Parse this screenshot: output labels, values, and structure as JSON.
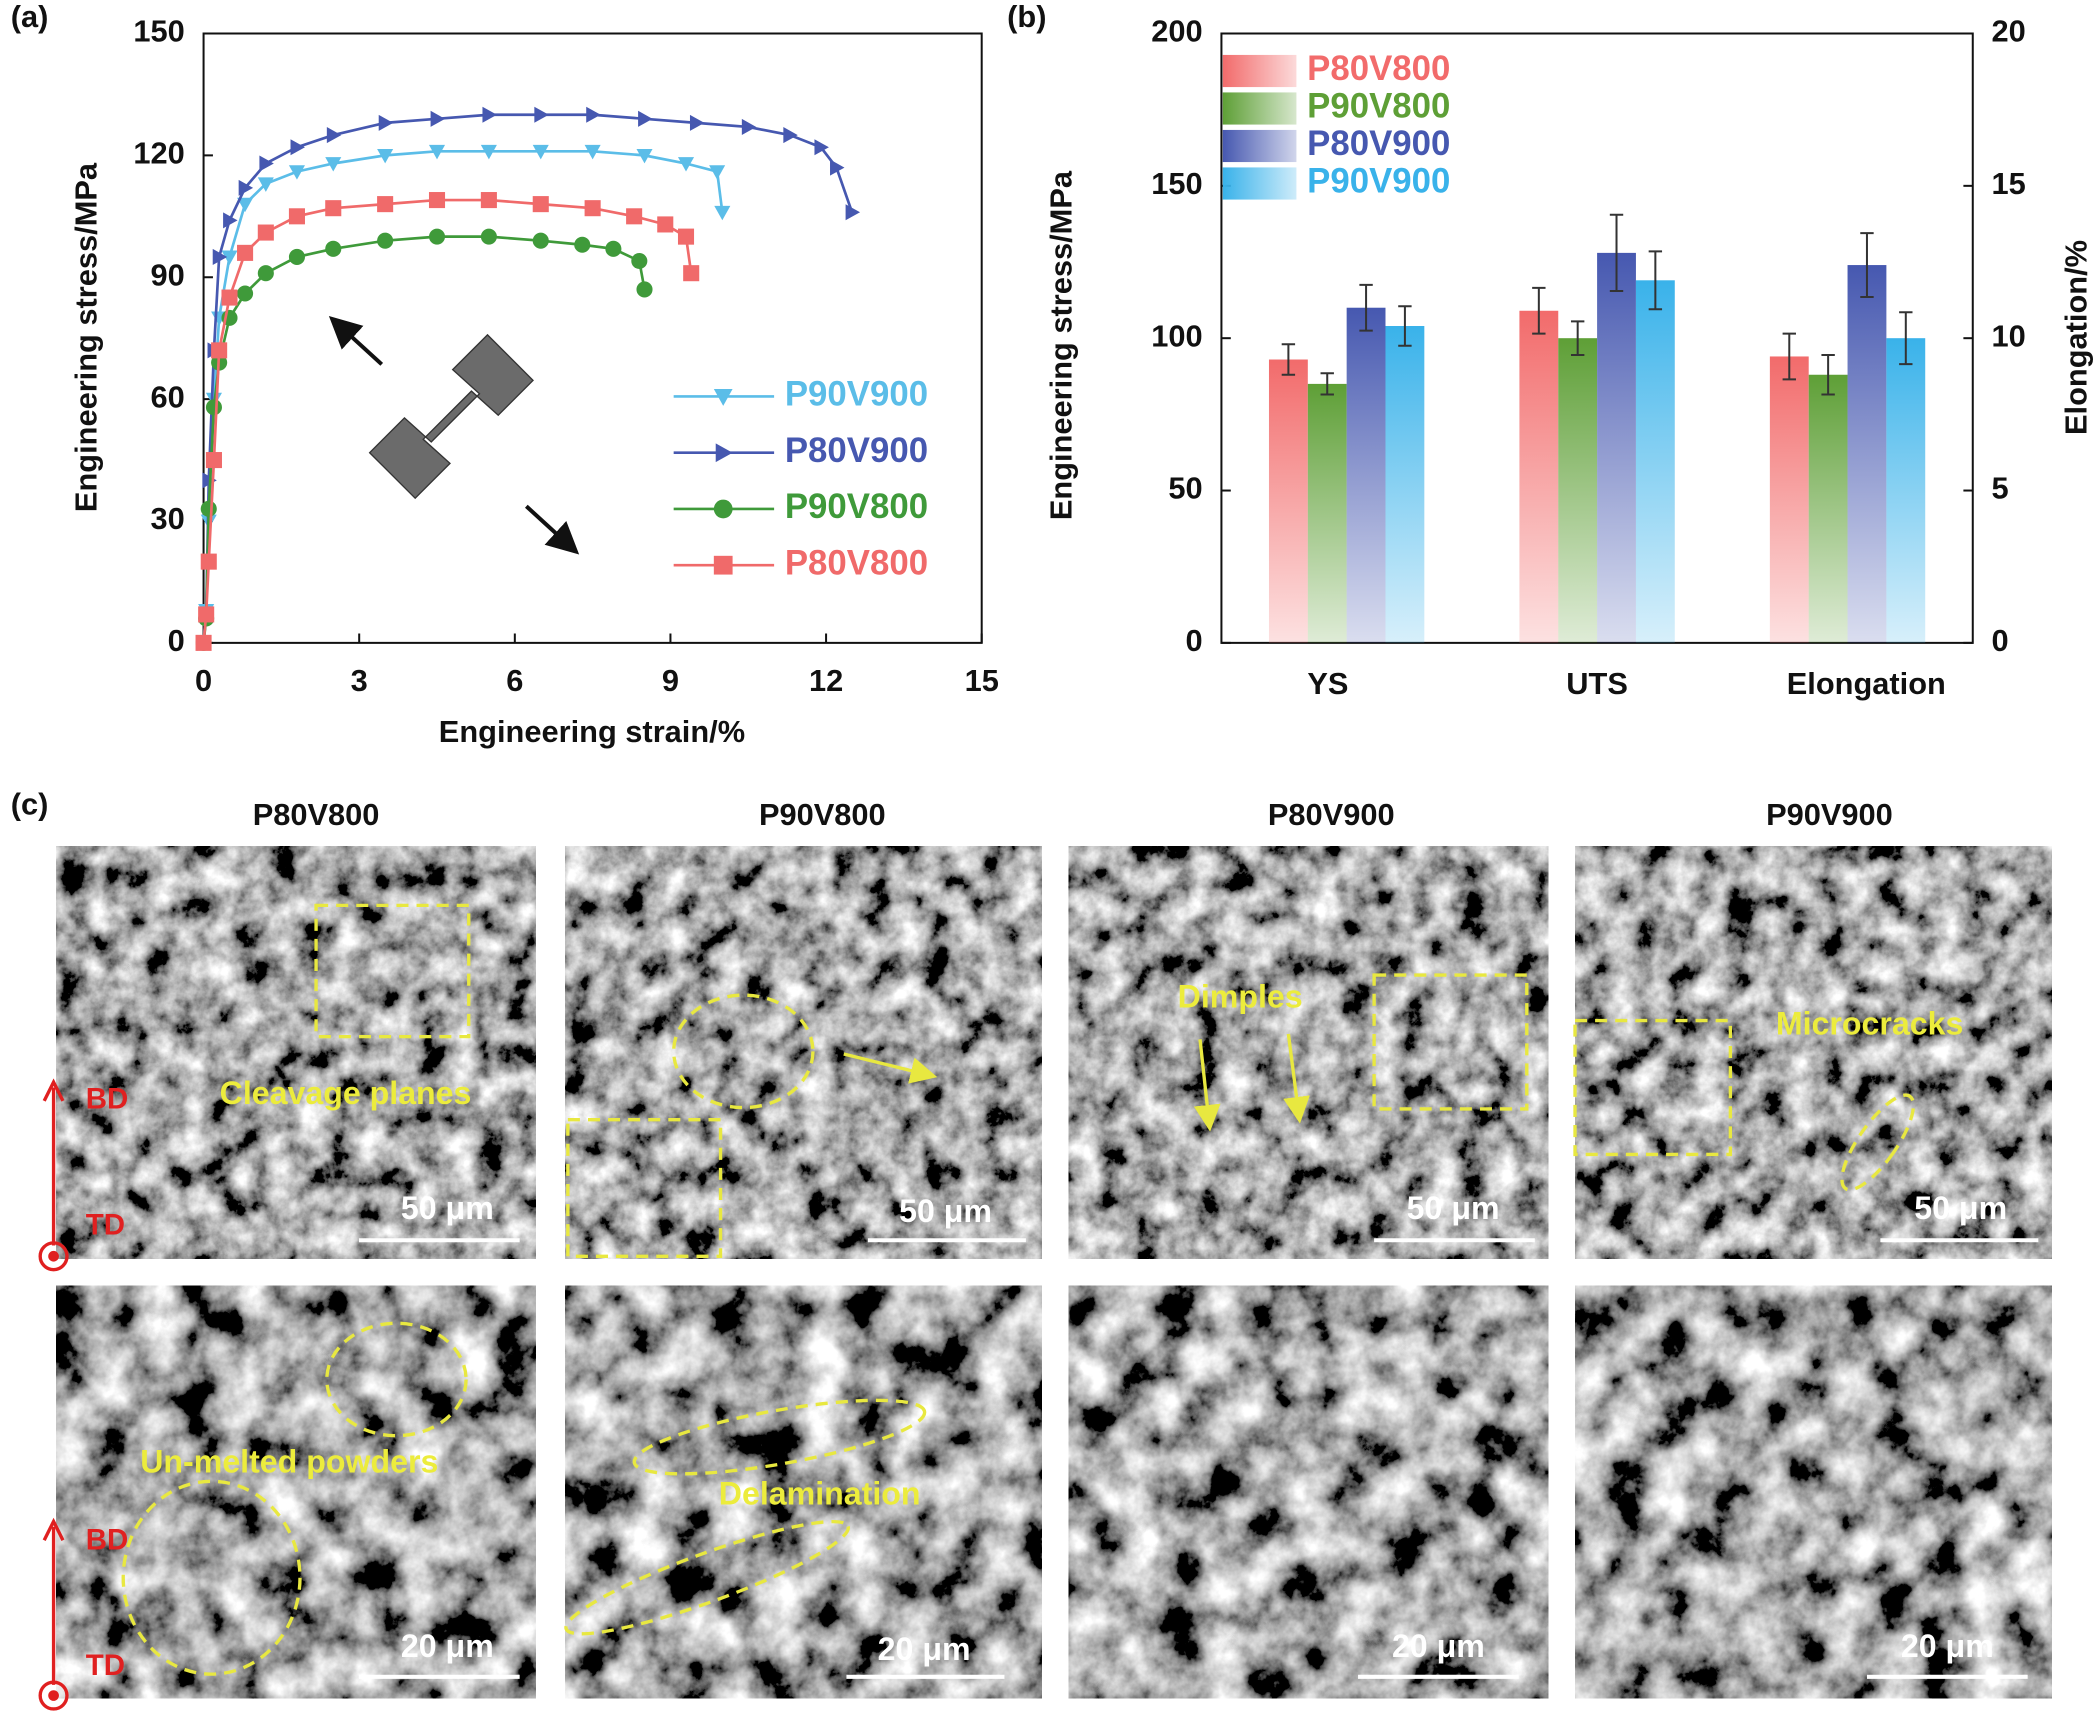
{
  "chart_data": [
    {
      "type": "line",
      "panel_label": "(a)",
      "x_label": "Engineering strain/%",
      "y_label": "Engineering stress/MPa",
      "xlim": [
        0,
        15
      ],
      "xticks": [
        0,
        3,
        6,
        9,
        12,
        15
      ],
      "ylim": [
        0,
        150
      ],
      "yticks": [
        0,
        30,
        60,
        90,
        120,
        150
      ],
      "legend": "center right",
      "series": [
        {
          "name": "P90V900",
          "color": "#5bbde8",
          "marker": "triangle-down",
          "x": [
            0,
            0.05,
            0.1,
            0.2,
            0.3,
            0.5,
            0.8,
            1.2,
            1.8,
            2.5,
            3.5,
            4.5,
            5.5,
            6.5,
            7.5,
            8.5,
            9.3,
            9.9,
            10.0
          ],
          "values": [
            0,
            8,
            30,
            60,
            80,
            95,
            108,
            113,
            116,
            118,
            120,
            121,
            121,
            121,
            121,
            120,
            118,
            116,
            106
          ]
        },
        {
          "name": "P80V900",
          "color": "#4658b0",
          "marker": "triangle-right",
          "x": [
            0,
            0.05,
            0.1,
            0.2,
            0.3,
            0.5,
            0.8,
            1.2,
            1.8,
            2.5,
            3.5,
            4.5,
            5.5,
            6.5,
            7.5,
            8.5,
            9.5,
            10.5,
            11.3,
            11.9,
            12.2,
            12.5
          ],
          "values": [
            0,
            7,
            40,
            72,
            95,
            104,
            112,
            118,
            122,
            125,
            128,
            129,
            130,
            130,
            130,
            129,
            128,
            127,
            125,
            122,
            117,
            106
          ]
        },
        {
          "name": "P90V800",
          "color": "#3f9a3a",
          "marker": "circle",
          "x": [
            0,
            0.05,
            0.1,
            0.2,
            0.3,
            0.5,
            0.8,
            1.2,
            1.8,
            2.5,
            3.5,
            4.5,
            5.5,
            6.5,
            7.3,
            7.9,
            8.4,
            8.5
          ],
          "values": [
            0,
            6,
            33,
            58,
            69,
            80,
            86,
            91,
            95,
            97,
            99,
            100,
            100,
            99,
            98,
            97,
            94,
            87
          ]
        },
        {
          "name": "P80V800",
          "color": "#f06a6a",
          "marker": "square",
          "x": [
            0,
            0.05,
            0.1,
            0.2,
            0.3,
            0.5,
            0.8,
            1.2,
            1.8,
            2.5,
            3.5,
            4.5,
            5.5,
            6.5,
            7.5,
            8.3,
            8.9,
            9.3,
            9.4
          ],
          "values": [
            0,
            7,
            20,
            45,
            72,
            85,
            96,
            101,
            105,
            107,
            108,
            109,
            109,
            108,
            107,
            105,
            103,
            100,
            91
          ]
        }
      ]
    },
    {
      "type": "bar",
      "panel_label": "(b)",
      "y_label": "Engineering stress/MPa",
      "y2_label": "Elongation/%",
      "categories": [
        "YS",
        "UTS",
        "Elongation"
      ],
      "category_axis": [
        "y",
        "y",
        "y2"
      ],
      "ylim": [
        0,
        200
      ],
      "yticks": [
        0,
        50,
        100,
        150,
        200
      ],
      "y2lim": [
        0,
        20
      ],
      "y2ticks": [
        0,
        5,
        10,
        15,
        20
      ],
      "legend": "upper left",
      "series": [
        {
          "name": "P80V800",
          "color": "#f26b6b",
          "values": [
            93,
            109,
            9.4
          ],
          "errors": [
            5,
            7.5,
            0.75
          ]
        },
        {
          "name": "P90V800",
          "color": "#5e9f36",
          "values": [
            85,
            100,
            8.8
          ],
          "errors": [
            3.5,
            5.5,
            0.65
          ]
        },
        {
          "name": "P80V900",
          "color": "#4658b0",
          "values": [
            110,
            128,
            12.4
          ],
          "errors": [
            7.5,
            12.5,
            1.05
          ]
        },
        {
          "name": "P90V900",
          "color": "#39b2ea",
          "values": [
            104,
            119,
            10.0
          ],
          "errors": [
            6.5,
            9.5,
            0.85
          ]
        }
      ]
    }
  ],
  "panel_c": {
    "panel_label": "(c)",
    "columns": [
      "P80V800",
      "P90V800",
      "P80V900",
      "P90V900"
    ],
    "directions": [
      "BD",
      "TD"
    ],
    "scale_bars": [
      [
        "50 μm",
        "50 μm",
        "50 μm",
        "50 μm"
      ],
      [
        "20 μm",
        "20 μm",
        "20 μm",
        "20 μm"
      ]
    ],
    "annotations": [
      "Cleavage planes",
      "Dimples",
      "Microcracks",
      "Un-melted powders",
      "Delamination"
    ]
  }
}
